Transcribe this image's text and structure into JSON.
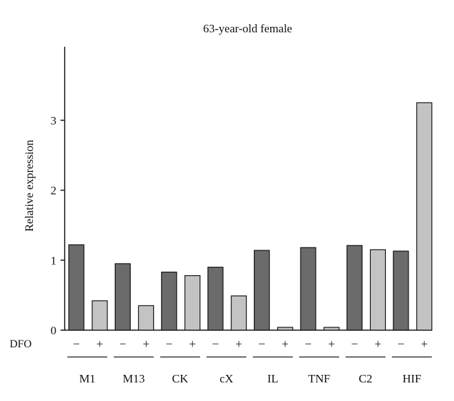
{
  "chart_data": {
    "type": "bar",
    "title": "63-year-old female",
    "ylabel": "Relative expression",
    "xlabel": "",
    "treatment_label": "DFO",
    "treatment_levels": [
      "−",
      "+"
    ],
    "categories": [
      "M1",
      "M13",
      "CK",
      "cX",
      "IL",
      "TNF",
      "C2",
      "HIF"
    ],
    "series": [
      {
        "level": "−",
        "color": "#6b6b6b",
        "values": [
          1.22,
          0.95,
          0.83,
          0.9,
          1.14,
          1.18,
          1.21,
          1.13
        ]
      },
      {
        "level": "+",
        "color": "#c3c3c3",
        "values": [
          0.42,
          0.35,
          0.78,
          0.49,
          0.04,
          0.04,
          1.15,
          3.25
        ]
      }
    ],
    "ylim": [
      0,
      4.05
    ],
    "yticks": [
      0,
      1,
      2,
      3
    ],
    "grid": false,
    "legend": "none"
  }
}
